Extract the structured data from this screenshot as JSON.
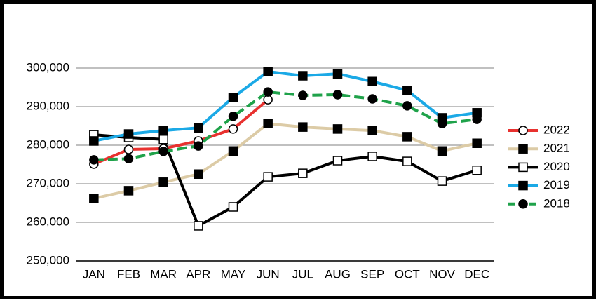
{
  "chart_data": {
    "type": "line",
    "categories": [
      "JAN",
      "FEB",
      "MAR",
      "APR",
      "MAY",
      "JUN",
      "JUL",
      "AUG",
      "SEP",
      "OCT",
      "NOV",
      "DEC"
    ],
    "ylim": [
      250000,
      300000
    ],
    "yticks": [
      {
        "value": 250000,
        "label": "250,000"
      },
      {
        "value": 260000,
        "label": "260,000"
      },
      {
        "value": 270000,
        "label": "270,000"
      },
      {
        "value": 280000,
        "label": "280,000"
      },
      {
        "value": 290000,
        "label": "290,000"
      },
      {
        "value": 300000,
        "label": "300,000"
      }
    ],
    "grid": true,
    "legend": "right",
    "series": [
      {
        "name": "2022",
        "color": "#e8312f",
        "marker": "circle",
        "marker_fill": "#ffffff",
        "dash": false,
        "values": [
          275100,
          278900,
          279100,
          281100,
          284200,
          291800,
          null,
          null,
          null,
          null,
          null,
          null
        ]
      },
      {
        "name": "2021",
        "color": "#dccba6",
        "marker": "square",
        "marker_fill": "#000000",
        "dash": false,
        "values": [
          266200,
          268200,
          270400,
          272500,
          278500,
          285600,
          284700,
          284200,
          283800,
          282200,
          278500,
          280500
        ]
      },
      {
        "name": "2020",
        "color": "#000000",
        "marker": "square",
        "marker_fill": "#ffffff",
        "dash": false,
        "values": [
          282700,
          282000,
          281500,
          259100,
          264000,
          271800,
          272700,
          276000,
          277100,
          275800,
          270700,
          273500
        ]
      },
      {
        "name": "2019",
        "color": "#1ba9e6",
        "marker": "square",
        "marker_fill": "#000000",
        "dash": false,
        "values": [
          281100,
          282900,
          283800,
          284500,
          292400,
          299100,
          298000,
          298500,
          296500,
          294200,
          287100,
          288400
        ]
      },
      {
        "name": "2018",
        "color": "#1fa24a",
        "marker": "circle",
        "marker_fill": "#000000",
        "dash": true,
        "values": [
          276200,
          276500,
          278400,
          279800,
          287500,
          293800,
          292900,
          293100,
          292000,
          290200,
          285600,
          286700
        ]
      }
    ]
  }
}
